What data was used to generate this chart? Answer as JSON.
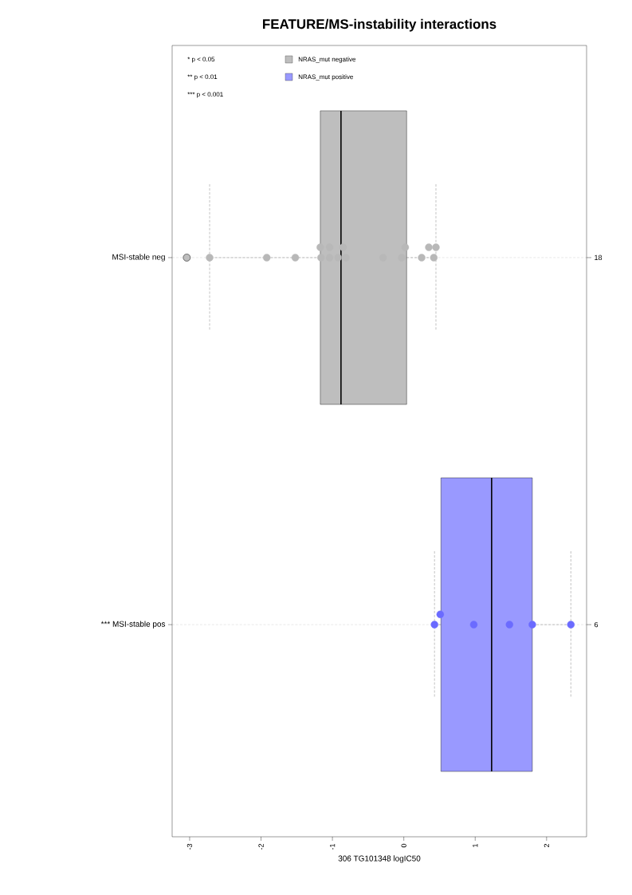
{
  "chart_data": {
    "type": "box",
    "orientation": "horizontal",
    "title": "FEATURE/MS-instability interactions",
    "xlabel": "306 TG101348 logIC50",
    "categories": [
      "MSI-stable neg",
      "*** MSI-stable pos"
    ],
    "y2_categories": [
      "18",
      "6"
    ],
    "xlim": [
      -3.245,
      2.56
    ],
    "xticks": [
      -3,
      -2,
      -1,
      0,
      1,
      2
    ],
    "grid": "y",
    "legend": "top left",
    "marker": "circle",
    "series": [
      {
        "name": "NRAS_mut negative",
        "color": "#bebebe",
        "boxes": [
          {
            "low": -2.72,
            "q1": -1.17,
            "median": -0.88,
            "q3": 0.04,
            "high": 0.45,
            "outliers": [
              -3.04
            ]
          },
          null
        ]
      },
      {
        "name": "NRAS_mut positive",
        "color": "#9999ff",
        "boxes": [
          null,
          {
            "low": 0.43,
            "q1": 0.52,
            "median": 1.23,
            "q3": 1.8,
            "high": 2.34
          }
        ]
      },
      {
        "type": "scatter",
        "color": "#b8b8b8",
        "x": [
          "MSI-stable neg",
          "MSI-stable neg",
          "MSI-stable neg",
          "MSI-stable neg",
          "MSI-stable neg",
          "MSI-stable neg",
          "MSI-stable neg",
          "MSI-stable neg",
          "MSI-stable neg",
          "MSI-stable neg",
          "MSI-stable neg",
          "MSI-stable neg",
          "MSI-stable neg",
          "MSI-stable neg",
          "MSI-stable neg",
          "MSI-stable neg",
          "MSI-stable neg"
        ],
        "values": [
          -2.72,
          -1.92,
          -1.52,
          -1.16,
          -1.17,
          -1.04,
          -1.04,
          -0.92,
          -0.85,
          -0.81,
          -0.29,
          -0.03,
          0.02,
          0.25,
          0.35,
          0.42,
          0.45
        ]
      },
      {
        "type": "scatter",
        "color": "#6b6bff",
        "x": [
          "*** MSI-stable pos",
          "*** MSI-stable pos",
          "*** MSI-stable pos",
          "*** MSI-stable pos",
          "*** MSI-stable pos",
          "*** MSI-stable pos"
        ],
        "values": [
          0.43,
          0.51,
          0.98,
          1.48,
          1.8,
          2.34
        ]
      }
    ],
    "annotations": [
      "* p < 0.05",
      "** p < 0.01",
      "*** p < 0.001"
    ]
  }
}
